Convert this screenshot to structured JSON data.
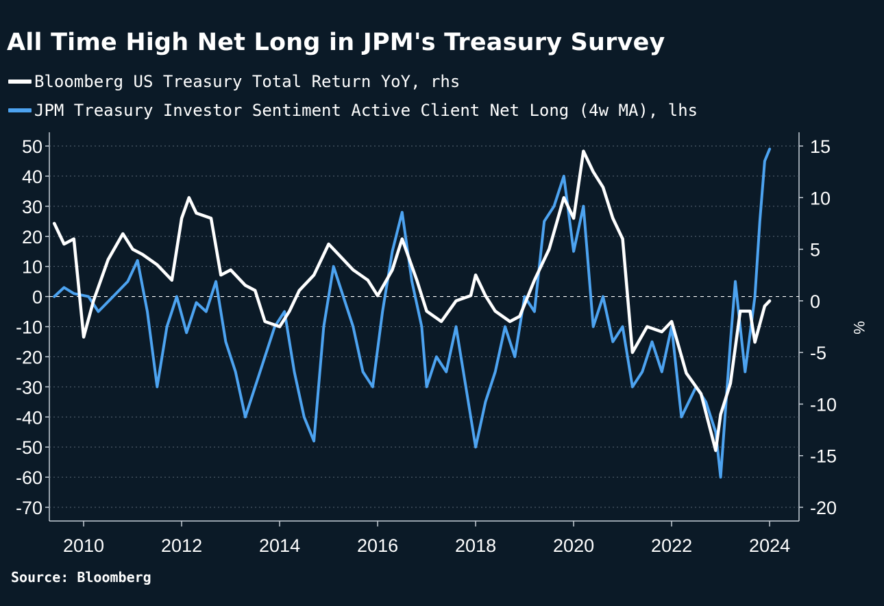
{
  "chart_data": {
    "type": "line",
    "title": "All Time High Net Long in JPM's Treasury Survey",
    "source": "Source: Bloomberg",
    "x_ticks": [
      "2010",
      "2012",
      "2014",
      "2016",
      "2018",
      "2020",
      "2022",
      "2024"
    ],
    "xlim": [
      2009.3,
      2024.6
    ],
    "left_axis": {
      "label": "",
      "ylim": [
        -70,
        50
      ],
      "ticks": [
        "50",
        "40",
        "30",
        "20",
        "10",
        "0",
        "-10",
        "-20",
        "-30",
        "-40",
        "-50",
        "-60",
        "-70"
      ]
    },
    "right_axis": {
      "label": "%",
      "ylim": [
        -20,
        15
      ],
      "ticks": [
        "15",
        "10",
        "5",
        "0",
        "-5",
        "-10",
        "-15",
        "-20"
      ]
    },
    "series": [
      {
        "name": "Bloomberg US Treasury Total Return YoY, rhs",
        "axis": "right",
        "color": "#ffffff",
        "points": [
          [
            2009.4,
            7.5
          ],
          [
            2009.6,
            5.5
          ],
          [
            2009.8,
            6.0
          ],
          [
            2010.0,
            -3.5
          ],
          [
            2010.2,
            0.0
          ],
          [
            2010.5,
            4.0
          ],
          [
            2010.8,
            6.5
          ],
          [
            2011.0,
            5.0
          ],
          [
            2011.2,
            4.5
          ],
          [
            2011.5,
            3.5
          ],
          [
            2011.8,
            2.0
          ],
          [
            2012.0,
            8.0
          ],
          [
            2012.15,
            10.0
          ],
          [
            2012.3,
            8.5
          ],
          [
            2012.6,
            8.0
          ],
          [
            2012.8,
            2.5
          ],
          [
            2013.0,
            3.0
          ],
          [
            2013.3,
            1.5
          ],
          [
            2013.5,
            1.0
          ],
          [
            2013.7,
            -2.0
          ],
          [
            2014.0,
            -2.5
          ],
          [
            2014.2,
            -1.0
          ],
          [
            2014.4,
            1.0
          ],
          [
            2014.7,
            2.5
          ],
          [
            2015.0,
            5.5
          ],
          [
            2015.2,
            4.5
          ],
          [
            2015.5,
            3.0
          ],
          [
            2015.8,
            2.0
          ],
          [
            2016.0,
            0.5
          ],
          [
            2016.3,
            3.0
          ],
          [
            2016.5,
            6.0
          ],
          [
            2016.8,
            2.0
          ],
          [
            2017.0,
            -1.0
          ],
          [
            2017.3,
            -2.0
          ],
          [
            2017.6,
            0.0
          ],
          [
            2017.9,
            0.5
          ],
          [
            2018.0,
            2.5
          ],
          [
            2018.2,
            0.5
          ],
          [
            2018.4,
            -1.0
          ],
          [
            2018.7,
            -2.0
          ],
          [
            2018.9,
            -1.5
          ],
          [
            2019.2,
            2.0
          ],
          [
            2019.5,
            5.0
          ],
          [
            2019.8,
            10.0
          ],
          [
            2020.0,
            8.0
          ],
          [
            2020.2,
            14.5
          ],
          [
            2020.4,
            12.5
          ],
          [
            2020.6,
            11.0
          ],
          [
            2020.8,
            8.0
          ],
          [
            2021.0,
            6.0
          ],
          [
            2021.2,
            -5.0
          ],
          [
            2021.5,
            -2.5
          ],
          [
            2021.8,
            -3.0
          ],
          [
            2022.0,
            -2.0
          ],
          [
            2022.3,
            -7.0
          ],
          [
            2022.6,
            -9.0
          ],
          [
            2022.9,
            -14.5
          ],
          [
            2023.0,
            -11.0
          ],
          [
            2023.2,
            -8.0
          ],
          [
            2023.4,
            -1.0
          ],
          [
            2023.6,
            -1.0
          ],
          [
            2023.7,
            -4.0
          ],
          [
            2023.9,
            -0.5
          ],
          [
            2024.0,
            0.0
          ]
        ]
      },
      {
        "name": "JPM Treasury Investor Sentiment Active Client Net Long (4w MA), lhs",
        "axis": "left",
        "color": "#4da3f0",
        "points": [
          [
            2009.4,
            0
          ],
          [
            2009.6,
            3
          ],
          [
            2009.8,
            1
          ],
          [
            2010.1,
            0
          ],
          [
            2010.3,
            -5
          ],
          [
            2010.6,
            0
          ],
          [
            2010.9,
            5
          ],
          [
            2011.1,
            12
          ],
          [
            2011.3,
            -5
          ],
          [
            2011.5,
            -30
          ],
          [
            2011.7,
            -10
          ],
          [
            2011.9,
            0
          ],
          [
            2012.1,
            -12
          ],
          [
            2012.3,
            -2
          ],
          [
            2012.5,
            -5
          ],
          [
            2012.7,
            5
          ],
          [
            2012.9,
            -15
          ],
          [
            2013.1,
            -25
          ],
          [
            2013.3,
            -40
          ],
          [
            2013.5,
            -30
          ],
          [
            2013.7,
            -20
          ],
          [
            2013.9,
            -10
          ],
          [
            2014.1,
            -5
          ],
          [
            2014.3,
            -25
          ],
          [
            2014.5,
            -40
          ],
          [
            2014.7,
            -48
          ],
          [
            2014.9,
            -10
          ],
          [
            2015.1,
            10
          ],
          [
            2015.3,
            0
          ],
          [
            2015.5,
            -10
          ],
          [
            2015.7,
            -25
          ],
          [
            2015.9,
            -30
          ],
          [
            2016.1,
            -5
          ],
          [
            2016.3,
            15
          ],
          [
            2016.5,
            28
          ],
          [
            2016.7,
            5
          ],
          [
            2016.9,
            -10
          ],
          [
            2017.0,
            -30
          ],
          [
            2017.2,
            -20
          ],
          [
            2017.4,
            -25
          ],
          [
            2017.6,
            -10
          ],
          [
            2017.8,
            -30
          ],
          [
            2018.0,
            -50
          ],
          [
            2018.2,
            -35
          ],
          [
            2018.4,
            -25
          ],
          [
            2018.6,
            -10
          ],
          [
            2018.8,
            -20
          ],
          [
            2019.0,
            0
          ],
          [
            2019.2,
            -5
          ],
          [
            2019.4,
            25
          ],
          [
            2019.6,
            30
          ],
          [
            2019.8,
            40
          ],
          [
            2020.0,
            15
          ],
          [
            2020.2,
            30
          ],
          [
            2020.4,
            -10
          ],
          [
            2020.6,
            0
          ],
          [
            2020.8,
            -15
          ],
          [
            2021.0,
            -10
          ],
          [
            2021.2,
            -30
          ],
          [
            2021.4,
            -25
          ],
          [
            2021.6,
            -15
          ],
          [
            2021.8,
            -25
          ],
          [
            2022.0,
            -10
          ],
          [
            2022.2,
            -40
          ],
          [
            2022.5,
            -30
          ],
          [
            2022.7,
            -35
          ],
          [
            2022.9,
            -45
          ],
          [
            2023.0,
            -60
          ],
          [
            2023.2,
            -15
          ],
          [
            2023.3,
            5
          ],
          [
            2023.5,
            -25
          ],
          [
            2023.7,
            0
          ],
          [
            2023.8,
            25
          ],
          [
            2023.9,
            45
          ],
          [
            2024.0,
            49
          ]
        ]
      }
    ],
    "zero_line": true,
    "grid": true
  }
}
